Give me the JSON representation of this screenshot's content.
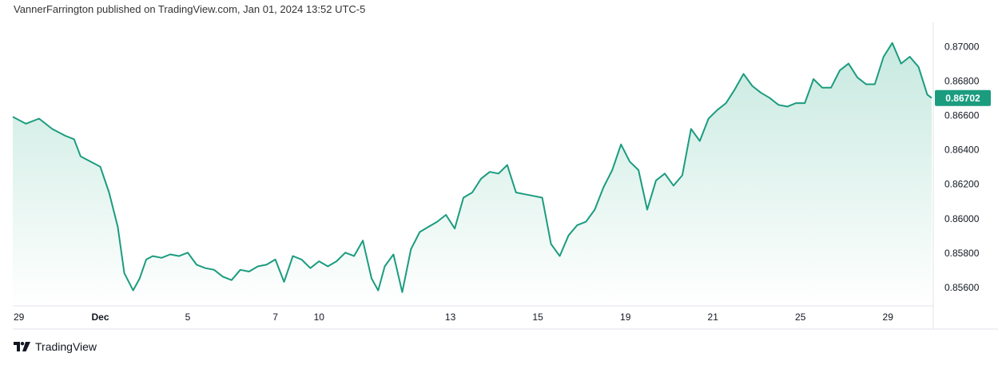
{
  "header": {
    "attribution": "VannerFarrington published on TradingView.com, Jan 01, 2024 13:52 UTC-5"
  },
  "footer": {
    "brand": "TradingView",
    "logo_icon": "tradingview-logo-icon"
  },
  "colors": {
    "line": "#1b9c7f",
    "area_top": "#c7e9df",
    "area_bottom": "#ffffff",
    "price_label_bg": "#1b9c7f",
    "axis_text": "#131722",
    "border": "#e0e3eb"
  },
  "chart_data": {
    "type": "area",
    "x_tick_labels": [
      {
        "label": "29",
        "x": 0
      },
      {
        "label": "Dec",
        "x": 2
      },
      {
        "label": "5",
        "x": 4
      },
      {
        "label": "7",
        "x": 6
      },
      {
        "label": "10",
        "x": 7
      },
      {
        "label": "13",
        "x": 10
      },
      {
        "label": "15",
        "x": 12
      },
      {
        "label": "19",
        "x": 14
      },
      {
        "label": "21",
        "x": 16
      },
      {
        "label": "25",
        "x": 18
      },
      {
        "label": "29",
        "x": 20
      }
    ],
    "y_ticks": [
      0.856,
      0.858,
      0.86,
      0.862,
      0.864,
      0.866,
      0.868,
      0.87
    ],
    "ylim": [
      0.8549,
      0.8714
    ],
    "xlim": [
      0,
      21.0
    ],
    "last_price_label": "0.86702",
    "series": [
      {
        "x": [
          0,
          0.3,
          0.6,
          0.9,
          1.2,
          1.4,
          1.55,
          1.7,
          1.85,
          2.0,
          2.2,
          2.4,
          2.55,
          2.75,
          2.9,
          3.05,
          3.2,
          3.4,
          3.6,
          3.8,
          4.0,
          4.2,
          4.4,
          4.6,
          4.8,
          5.0,
          5.2,
          5.4,
          5.6,
          5.8,
          6.0,
          6.2,
          6.4,
          6.6,
          6.8,
          7.0,
          7.2,
          7.4,
          7.6,
          7.8,
          8.0,
          8.2,
          8.35,
          8.5,
          8.7,
          8.9,
          9.1,
          9.3,
          9.5,
          9.7,
          9.9,
          10.1,
          10.3,
          10.5,
          10.7,
          10.9,
          11.1,
          11.3,
          11.5,
          11.7,
          11.9,
          12.1,
          12.3,
          12.5,
          12.7,
          12.9,
          13.1,
          13.3,
          13.5,
          13.7,
          13.9,
          14.1,
          14.3,
          14.5,
          14.7,
          14.9,
          15.1,
          15.3,
          15.5,
          15.7,
          15.9,
          16.1,
          16.3,
          16.5,
          16.7,
          16.9,
          17.1,
          17.3,
          17.5,
          17.7,
          17.9,
          18.1,
          18.3,
          18.5,
          18.7,
          18.9,
          19.1,
          19.3,
          19.5,
          19.7,
          19.9,
          20.1,
          20.3,
          20.5,
          20.7,
          20.9,
          21.0
        ],
        "y": [
          0.8659,
          0.8655,
          0.8658,
          0.8652,
          0.8648,
          0.8646,
          0.8636,
          0.8634,
          0.8632,
          0.863,
          0.8615,
          0.8595,
          0.8568,
          0.8558,
          0.8565,
          0.8576,
          0.8578,
          0.8577,
          0.8579,
          0.8578,
          0.858,
          0.8573,
          0.8571,
          0.857,
          0.8566,
          0.8564,
          0.857,
          0.8569,
          0.8572,
          0.8573,
          0.8576,
          0.8563,
          0.8578,
          0.8576,
          0.8571,
          0.8575,
          0.8572,
          0.8575,
          0.858,
          0.8578,
          0.8587,
          0.8565,
          0.8558,
          0.8572,
          0.8579,
          0.8557,
          0.8582,
          0.8592,
          0.8595,
          0.8598,
          0.8602,
          0.8594,
          0.8612,
          0.8615,
          0.8623,
          0.8627,
          0.8626,
          0.8631,
          0.8615,
          0.8614,
          0.8613,
          0.8612,
          0.8585,
          0.8578,
          0.859,
          0.8596,
          0.8598,
          0.8605,
          0.8618,
          0.8628,
          0.8643,
          0.8633,
          0.8628,
          0.8605,
          0.8622,
          0.8626,
          0.8619,
          0.8625,
          0.8652,
          0.8645,
          0.8658,
          0.8663,
          0.8667,
          0.8675,
          0.8684,
          0.8677,
          0.8673,
          0.867,
          0.8666,
          0.8665,
          0.8667,
          0.8667,
          0.8681,
          0.8676,
          0.8676,
          0.8686,
          0.869,
          0.8682,
          0.8678,
          0.8678,
          0.8694,
          0.8702,
          0.869,
          0.8694,
          0.8688,
          0.8672,
          0.867
        ]
      }
    ]
  }
}
